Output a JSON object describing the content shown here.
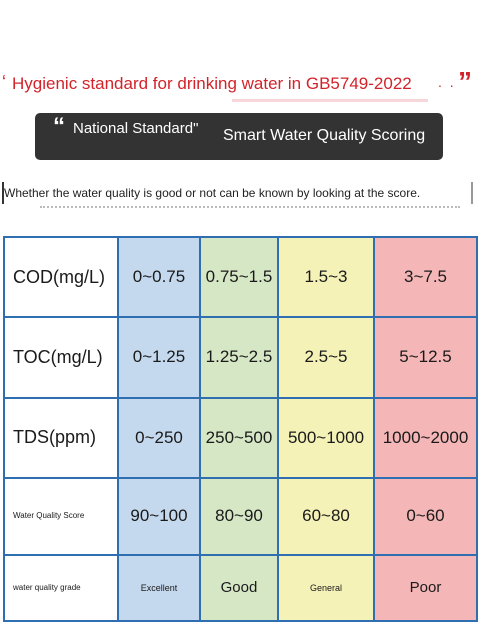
{
  "headline": {
    "open_quote": "‘",
    "text": "Hygienic standard for drinking water in GB5749-2022",
    "trailing_dots": ". .",
    "close_quote": "”"
  },
  "banner": {
    "open_quote": "“",
    "left_text": "National Standard\"",
    "right_text": "Smart Water Quality Scoring",
    "tick": "'"
  },
  "caption": "Whether the water quality is good or not can be known by looking at the score.",
  "table": {
    "rows": [
      {
        "label": "COD(mg/L)",
        "cells": [
          "0~0.75",
          "0.75~1.5",
          "1.5~3",
          "3~7.5"
        ]
      },
      {
        "label": "TOC(mg/L)",
        "cells": [
          "0~1.25",
          "1.25~2.5",
          "2.5~5",
          "5~12.5"
        ]
      },
      {
        "label": "TDS(ppm)",
        "cells": [
          "0~250",
          "250~500",
          "500~1000",
          "1000~2000"
        ]
      },
      {
        "label": "Water Quality Score",
        "cells": [
          "90~100",
          "80~90",
          "60~80",
          "0~60"
        ]
      },
      {
        "label": "water quality grade",
        "cells": [
          "Excellent",
          "Good",
          "General",
          "Poor"
        ]
      }
    ],
    "colors": {
      "excellent": "#c5d9ee",
      "good": "#d6e7c6",
      "general": "#f5f2b8",
      "poor": "#f4b6b6",
      "border": "#2f6eb0"
    }
  },
  "colors": {
    "headline": "#d2232a",
    "banner_bg": "#333333"
  }
}
